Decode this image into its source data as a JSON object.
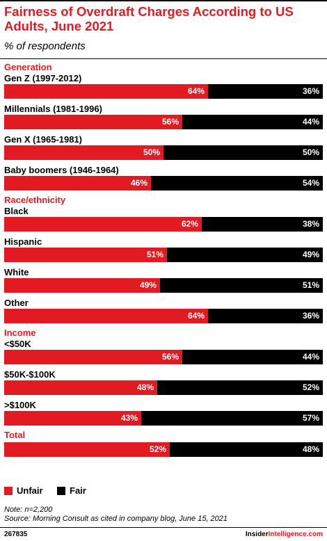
{
  "header": {
    "title": "Fairness of Overdraft Charges According to US Adults, June 2021",
    "subtitle": "% of respondents"
  },
  "legend": {
    "unfair_label": "Unfair",
    "fair_label": "Fair"
  },
  "footer": {
    "note": "Note: n=2,200",
    "source": "Source: Morning Consult as cited in company blog, June 15, 2021",
    "chart_id": "267835",
    "brand_prefix": "Insider",
    "brand_suffix": "Intelligence.com"
  },
  "colors": {
    "unfair": "#e21b22",
    "fair": "#000000",
    "group_label": "#e21b22"
  },
  "chart_data": {
    "type": "bar",
    "orientation": "horizontal",
    "stacked": true,
    "percent_suffix": "%",
    "series_names": [
      "Unfair",
      "Fair"
    ],
    "groups": [
      {
        "name": "Generation",
        "rows": [
          {
            "label": "Gen Z (1997-2012)",
            "unfair": 64,
            "fair": 36
          },
          {
            "label": "Millennials (1981-1996)",
            "unfair": 56,
            "fair": 44
          },
          {
            "label": "Gen X (1965-1981)",
            "unfair": 50,
            "fair": 50
          },
          {
            "label": "Baby boomers (1946-1964)",
            "unfair": 46,
            "fair": 54
          }
        ]
      },
      {
        "name": "Race/ethnicity",
        "rows": [
          {
            "label": "Black",
            "unfair": 62,
            "fair": 38
          },
          {
            "label": "Hispanic",
            "unfair": 51,
            "fair": 49
          },
          {
            "label": "White",
            "unfair": 49,
            "fair": 51
          },
          {
            "label": "Other",
            "unfair": 64,
            "fair": 36
          }
        ]
      },
      {
        "name": "Income",
        "rows": [
          {
            "label": "<$50K",
            "unfair": 56,
            "fair": 44
          },
          {
            "label": "$50K-$100K",
            "unfair": 48,
            "fair": 52
          },
          {
            "label": ">$100K",
            "unfair": 43,
            "fair": 57
          }
        ]
      },
      {
        "name": "Total",
        "rows": [
          {
            "label": "",
            "unfair": 52,
            "fair": 48
          }
        ]
      }
    ]
  }
}
